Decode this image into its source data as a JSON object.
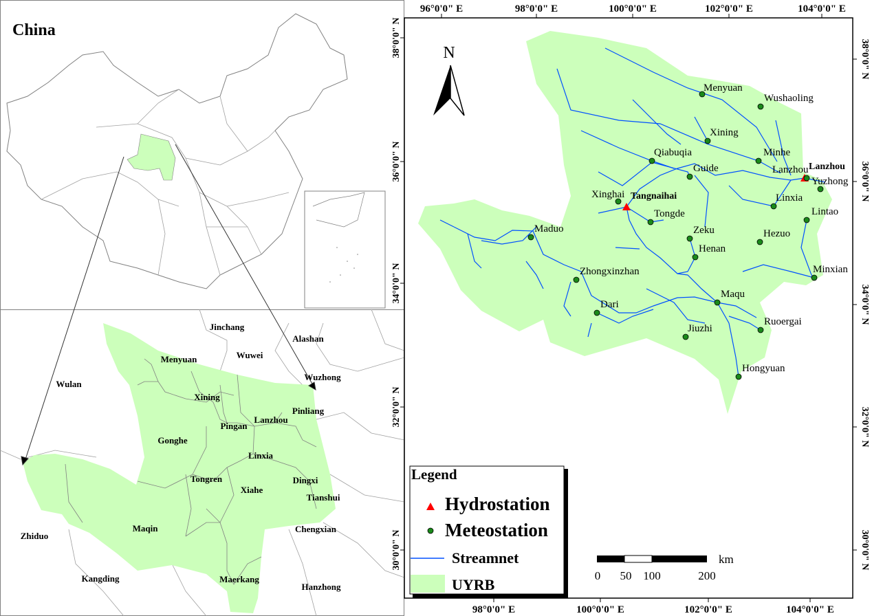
{
  "china_panel": {
    "title": "China"
  },
  "region_panel": {
    "labels": [
      "Jinchang",
      "Alashan",
      "Wuwei",
      "Menyuan",
      "Wulan",
      "Wuzhong",
      "Xining",
      "Pinliang",
      "Lanzhou",
      "Pingan",
      "Gonghe",
      "Linxia",
      "Tongren",
      "Dingxi",
      "Xiahe",
      "Tianshui",
      "Chengxian",
      "Zhiduo",
      "Maqin",
      "Kangding",
      "Maerkang",
      "Hanzhong"
    ]
  },
  "main_map": {
    "north_label": "N",
    "top_ticks": [
      "96°0'0\" E",
      "98°0'0\" E",
      "100°0'0\" E",
      "102°0'0\" E",
      "104°0'0\" E"
    ],
    "bottom_ticks": [
      "98°0'0\" E",
      "100°0'0\" E",
      "102°0'0\" E",
      "104°0'0\" E"
    ],
    "left_ticks": [
      "38°0'0\" N",
      "36°0'0\" N",
      "34°0'0\" N",
      "32°0'0\" N",
      "30°0'0\" N"
    ],
    "right_ticks": [
      "38°0'0\" N",
      "36°0'0\" N",
      "34°0'0\" N",
      "32°0'0\" N",
      "30°0'0\" N"
    ],
    "hydrostations": [
      "Tangnaihai",
      "Lanzhou"
    ],
    "meteostations": [
      "Menyuan",
      "Wushaoling",
      "Xining",
      "Minhe",
      "Qiabuqia",
      "Guide",
      "Lanzhou",
      "Yuzhong",
      "Xinghai",
      "Tongde",
      "Linxia",
      "Lintao",
      "Maduo",
      "Zeku",
      "Hezuo",
      "Henan",
      "Zhongxinzhan",
      "Minxian",
      "Maqu",
      "Dari",
      "Ruoergai",
      "Jiuzhi",
      "Hongyuan"
    ],
    "scale_bar": {
      "unit": "km",
      "ticks": [
        "0",
        "50",
        "100",
        "200"
      ]
    },
    "legend": {
      "title": "Legend",
      "items": [
        {
          "label": "Hydrostation",
          "symbol": "triangle",
          "color": "#ff0000"
        },
        {
          "label": "Meteostation",
          "symbol": "circle",
          "color": "#1a8a1a"
        },
        {
          "label": "Streamnet",
          "symbol": "line",
          "color": "#0050ff"
        },
        {
          "label": "UYRB",
          "symbol": "fill",
          "color": "#ccffbb"
        }
      ]
    }
  },
  "colors": {
    "basin": "#ccffbb",
    "river": "#0050ff",
    "boundary": "#808080"
  }
}
